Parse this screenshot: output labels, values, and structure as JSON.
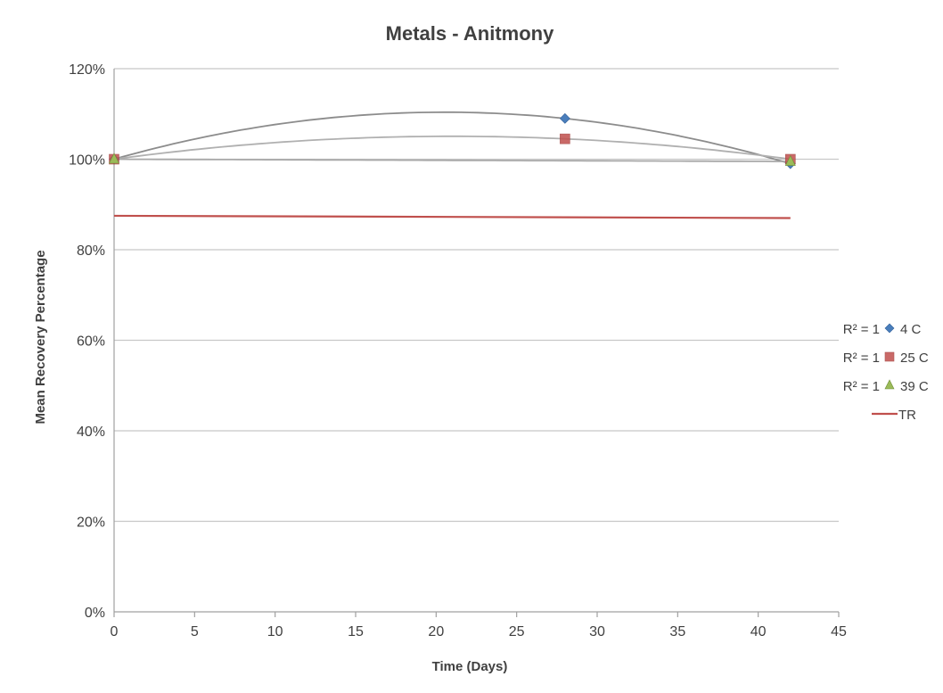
{
  "chart_data": {
    "type": "scatter",
    "title": "Metals - Anitmony",
    "xlabel": "Time (Days)",
    "ylabel": "Mean Recovery Percentage",
    "xlim": [
      0,
      45
    ],
    "ylim": [
      0,
      1.2
    ],
    "x_ticks": [
      "0",
      "5",
      "10",
      "15",
      "20",
      "25",
      "30",
      "35",
      "40",
      "45"
    ],
    "y_ticks": [
      "0%",
      "20%",
      "40%",
      "60%",
      "80%",
      "100%",
      "120%"
    ],
    "grid": true,
    "legend_placement": "right",
    "series": [
      {
        "name": "4 C",
        "marker": "diamond",
        "color": "#4a7ebb",
        "r2_label": "R² = 1",
        "x": [
          0,
          28,
          42
        ],
        "y": [
          1.0,
          1.09,
          0.99
        ]
      },
      {
        "name": "25 C",
        "marker": "square",
        "color": "#c0504d",
        "r2_label": "R² = 1",
        "x": [
          0,
          28,
          42
        ],
        "y": [
          1.0,
          1.045,
          1.0
        ]
      },
      {
        "name": "39 C",
        "marker": "triangle",
        "color": "#9bbb59",
        "r2_label": "R² = 1",
        "x": [
          0,
          42
        ],
        "y": [
          1.0,
          0.995
        ]
      }
    ],
    "tr_line": {
      "name": "TR",
      "color": "#c0504d",
      "x": [
        0,
        42
      ],
      "y": [
        0.875,
        0.87
      ]
    }
  }
}
